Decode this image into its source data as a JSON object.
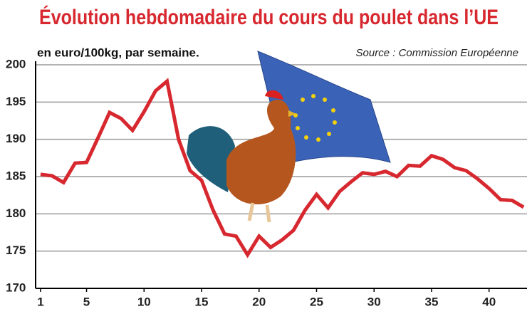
{
  "chart_data": {
    "type": "line",
    "title": "Évolution hebdomadaire du cours du poulet dans l’UE",
    "subtitle": "en euro/100kg, par semaine.",
    "source": "Source : Commission Européenne",
    "x": [
      1,
      2,
      3,
      4,
      5,
      6,
      7,
      8,
      9,
      10,
      11,
      12,
      13,
      14,
      15,
      16,
      17,
      18,
      19,
      20,
      21,
      22,
      23,
      24,
      25,
      26,
      27,
      28,
      29,
      30,
      31,
      32,
      33,
      34,
      35,
      36,
      37,
      38,
      39,
      40,
      41,
      42,
      43
    ],
    "series": [
      {
        "color": "#d7282f",
        "values": [
          185.3,
          185.1,
          184.2,
          186.8,
          186.9,
          190.2,
          193.6,
          192.8,
          191.2,
          193.7,
          196.5,
          197.8,
          190,
          185.8,
          184.5,
          180.5,
          177.3,
          177,
          174.5,
          177,
          175.5,
          176.5,
          177.8,
          180.5,
          182.6,
          180.8,
          183,
          184.3,
          185.5,
          185.3,
          185.7,
          185,
          186.5,
          186.4,
          187.8,
          187.3,
          186.2,
          185.8,
          184.7,
          183.4,
          181.9,
          181.8,
          180.9
        ]
      }
    ],
    "xlim": [
      0.57,
      43.3
    ],
    "ylim": [
      170,
      200
    ],
    "xticks": [
      1,
      5,
      10,
      15,
      20,
      25,
      30,
      35,
      40
    ],
    "yticks": [
      170,
      175,
      180,
      185,
      190,
      195,
      200
    ],
    "grid": true
  }
}
